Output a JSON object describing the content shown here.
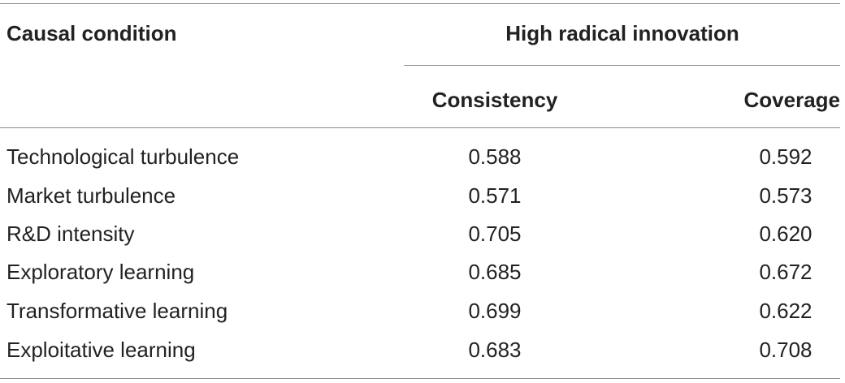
{
  "table": {
    "header": {
      "condition_label": "Causal condition",
      "group_label": "High radical innovation",
      "columns": [
        "Consistency",
        "Coverage"
      ]
    },
    "rows": [
      {
        "condition": "Technological turbulence",
        "consistency": "0.588",
        "coverage": "0.592"
      },
      {
        "condition": "Market turbulence",
        "consistency": "0.571",
        "coverage": "0.573"
      },
      {
        "condition": "R&D intensity",
        "consistency": "0.705",
        "coverage": "0.620"
      },
      {
        "condition": "Exploratory learning",
        "consistency": "0.685",
        "coverage": "0.672"
      },
      {
        "condition": "Transformative learning",
        "consistency": "0.699",
        "coverage": "0.622"
      },
      {
        "condition": "Exploitative learning",
        "consistency": "0.683",
        "coverage": "0.708"
      }
    ]
  }
}
